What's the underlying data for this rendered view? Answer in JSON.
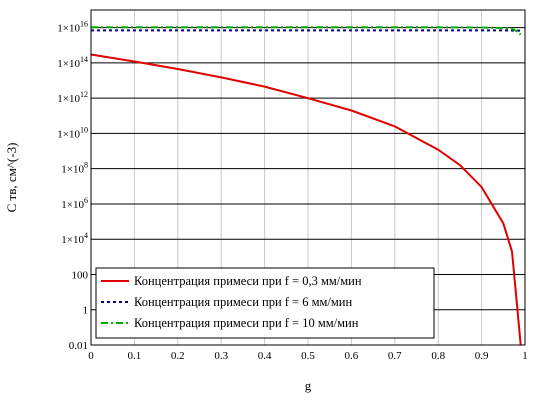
{
  "chart_data": {
    "type": "line",
    "xlabel": "g",
    "ylabel": "C тв, см^(-3)",
    "xlim": [
      0,
      1
    ],
    "ylim": [
      0.01,
      1e+17
    ],
    "y_scale": "log",
    "grid": true,
    "legend_position": "bottom-left",
    "x_ticks": [
      "0",
      "0.1",
      "0.2",
      "0.3",
      "0.4",
      "0.5",
      "0.6",
      "0.7",
      "0.8",
      "0.9",
      "1"
    ],
    "y_ticks": [
      {
        "value": 0.01,
        "base": "0.01",
        "exp": ""
      },
      {
        "value": 1,
        "base": "1",
        "exp": ""
      },
      {
        "value": 100,
        "base": "100",
        "exp": ""
      },
      {
        "value": 10000,
        "base": "1×10",
        "exp": "4"
      },
      {
        "value": 1000000,
        "base": "1×10",
        "exp": "6"
      },
      {
        "value": 100000000,
        "base": "1×10",
        "exp": "8"
      },
      {
        "value": 10000000000,
        "base": "1×10",
        "exp": "10"
      },
      {
        "value": 1000000000000,
        "base": "1×10",
        "exp": "12"
      },
      {
        "value": 100000000000000,
        "base": "1×10",
        "exp": "14"
      },
      {
        "value": 10000000000000000,
        "base": "1×10",
        "exp": "16"
      }
    ],
    "series": [
      {
        "name": "Концентрация примеси при f = 0,3 мм/мин",
        "color": "#e00000",
        "dash": "solid",
        "x": [
          0,
          0.1,
          0.2,
          0.3,
          0.4,
          0.5,
          0.6,
          0.7,
          0.8,
          0.85,
          0.9,
          0.95,
          0.97,
          0.98,
          0.99
        ],
        "y": [
          300000000000000.0,
          120000000000000.0,
          45000000000000.0,
          15000000000000.0,
          4500000000000.0,
          1000000000000.0,
          200000000000.0,
          25000000000.0,
          1200000000.0,
          160000000.0,
          9000000.0,
          80000.0,
          2000.0,
          5,
          0.01
        ]
      },
      {
        "name": "Концентрация примеси при f = 6 мм/мин",
        "color": "#000090",
        "dash": "dotted",
        "x": [
          0,
          0.2,
          0.4,
          0.6,
          0.8,
          0.9,
          0.95,
          0.98,
          0.99
        ],
        "y": [
          7000000000000000.0,
          7000000000000000.0,
          7000000000000000.0,
          7000000000000000.0,
          7000000000000000.0,
          7000000000000000.0,
          7000000000000000.0,
          6800000000000000.0,
          6700000000000000.0
        ]
      },
      {
        "name": "Концентрация примеси при f = 10 мм/мин",
        "color": "#00b000",
        "dash": "dashdot",
        "x": [
          0,
          0.2,
          0.4,
          0.6,
          0.8,
          0.9,
          0.95,
          0.97,
          0.98,
          0.99
        ],
        "y": [
          1.05e+16,
          1.05e+16,
          1.05e+16,
          1.05e+16,
          1.04e+16,
          1.02e+16,
          9500000000000000.0,
          8500000000000000.0,
          6500000000000000.0,
          4000000000000000.0
        ]
      }
    ]
  }
}
